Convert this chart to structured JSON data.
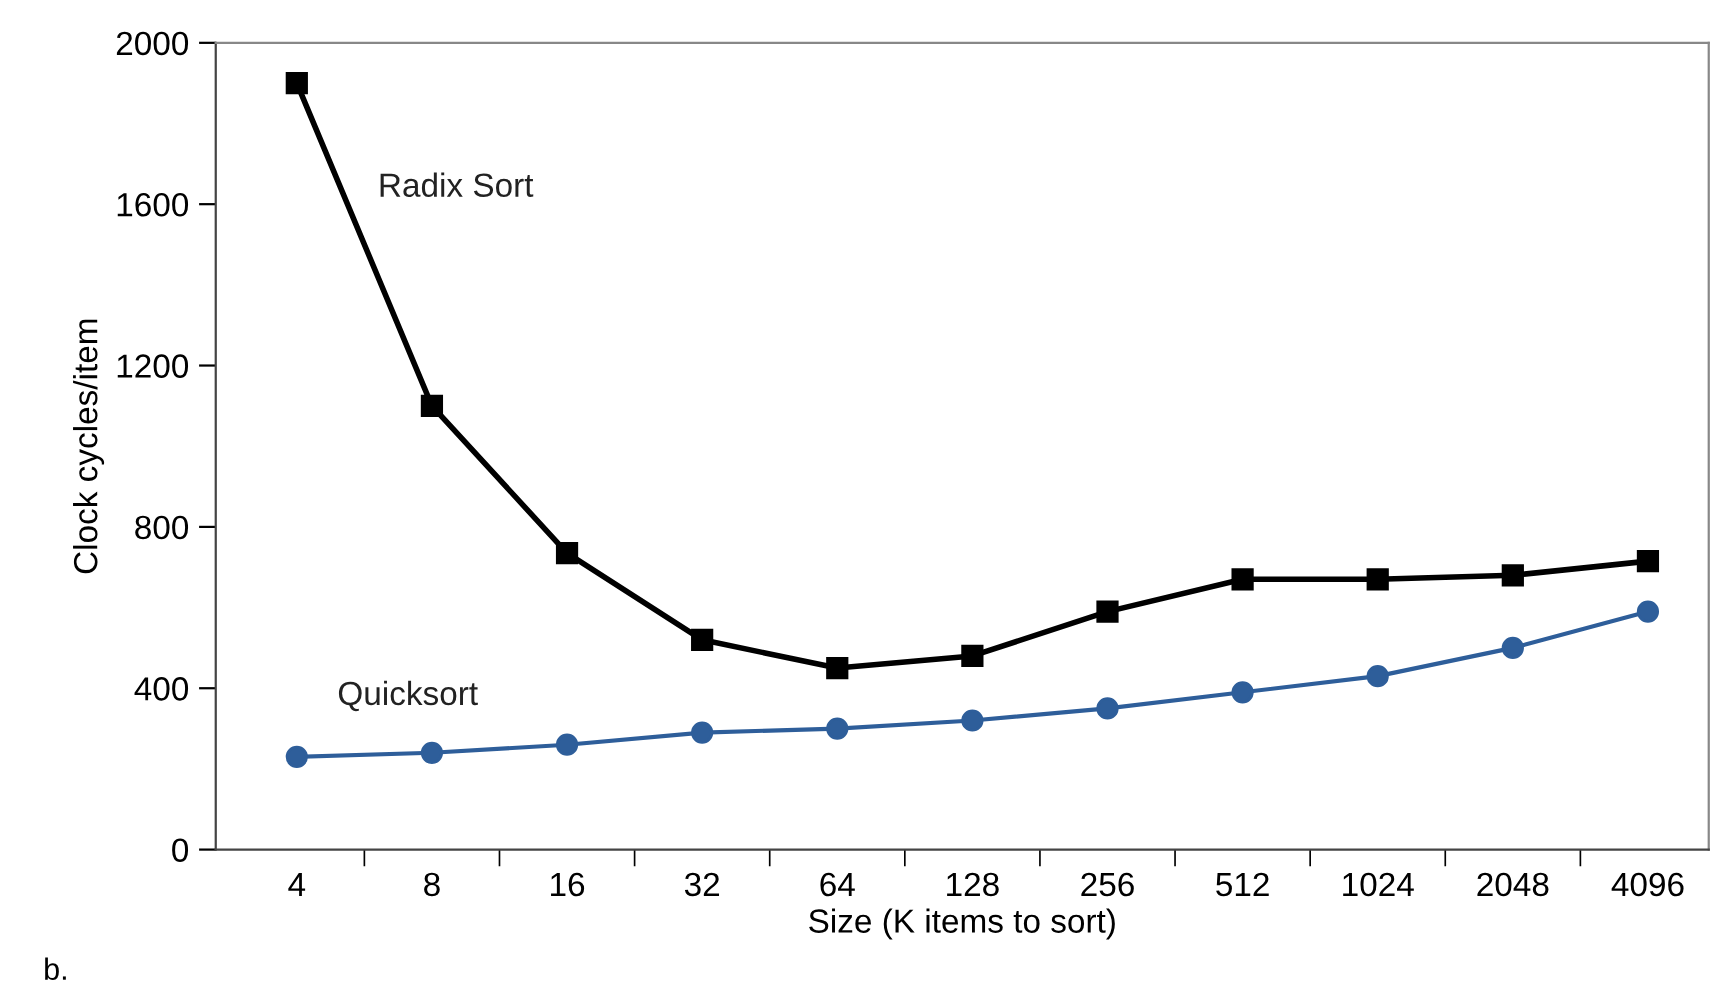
{
  "chart_data": {
    "type": "line",
    "xlabel": "Size (K items to sort)",
    "ylabel": "Clock cycles/item",
    "categories": [
      "4",
      "8",
      "16",
      "32",
      "64",
      "128",
      "256",
      "512",
      "1024",
      "2048",
      "4096"
    ],
    "series": [
      {
        "name": "Radix Sort",
        "color": "#000000",
        "marker": "square",
        "values": [
          1900,
          1100,
          735,
          520,
          450,
          480,
          590,
          670,
          670,
          680,
          715
        ]
      },
      {
        "name": "Quicksort",
        "color": "#2e5e9a",
        "marker": "circle",
        "values": [
          230,
          240,
          260,
          290,
          300,
          320,
          350,
          390,
          430,
          500,
          590
        ]
      }
    ],
    "ylim": [
      0,
      2000
    ],
    "yticks": [
      0,
      400,
      800,
      1200,
      1600,
      2000
    ],
    "grid": false,
    "legend": false,
    "line_style": "solid",
    "annotations": [
      "b."
    ]
  }
}
